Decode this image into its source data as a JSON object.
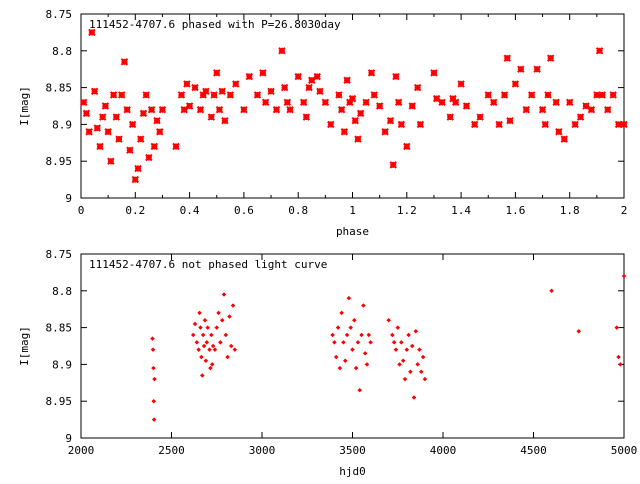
{
  "chart_data": [
    {
      "type": "scatter",
      "title": "111452-4707.6 phased with P=26.8030day",
      "xlabel": "phase",
      "ylabel": "I[mag]",
      "xlim": [
        0,
        2
      ],
      "ylim": [
        9,
        8.75
      ],
      "y_inverted": true,
      "grid": false,
      "marker": "bold-x",
      "color": "#ff0000",
      "xticks": [
        "0",
        "0.2",
        "0.4",
        "0.6",
        "0.8",
        "1",
        "1.2",
        "1.4",
        "1.6",
        "1.8",
        "2"
      ],
      "yticks": [
        "8.75",
        "8.8",
        "8.85",
        "8.9",
        "8.95",
        "9"
      ],
      "x": [
        0.01,
        0.02,
        0.03,
        0.04,
        0.05,
        0.06,
        0.07,
        0.08,
        0.09,
        0.1,
        0.11,
        0.12,
        0.13,
        0.14,
        0.15,
        0.16,
        0.17,
        0.18,
        0.19,
        0.2,
        0.21,
        0.22,
        0.23,
        0.24,
        0.25,
        0.26,
        0.27,
        0.28,
        0.29,
        0.3,
        0.35,
        0.37,
        0.38,
        0.39,
        0.4,
        0.42,
        0.44,
        0.45,
        0.46,
        0.48,
        0.49,
        0.5,
        0.51,
        0.52,
        0.53,
        0.55,
        0.57,
        0.6,
        0.62,
        0.65,
        0.67,
        0.68,
        0.7,
        0.72,
        0.74,
        0.75,
        0.76,
        0.77,
        0.8,
        0.82,
        0.83,
        0.84,
        0.85,
        0.87,
        0.88,
        0.9,
        0.92,
        0.95,
        0.96,
        0.97,
        0.98,
        0.99,
        1.0,
        1.01,
        1.02,
        1.03,
        1.05,
        1.07,
        1.08,
        1.1,
        1.12,
        1.14,
        1.15,
        1.16,
        1.17,
        1.18,
        1.2,
        1.22,
        1.24,
        1.25,
        1.3,
        1.31,
        1.33,
        1.36,
        1.37,
        1.38,
        1.4,
        1.42,
        1.45,
        1.47,
        1.5,
        1.52,
        1.54,
        1.56,
        1.57,
        1.58,
        1.6,
        1.62,
        1.64,
        1.66,
        1.68,
        1.7,
        1.71,
        1.72,
        1.73,
        1.75,
        1.76,
        1.78,
        1.8,
        1.82,
        1.84,
        1.86,
        1.88,
        1.9,
        1.91,
        1.92,
        1.94,
        1.96,
        1.98,
        2.0
      ],
      "y": [
        8.87,
        8.885,
        8.91,
        8.775,
        8.855,
        8.905,
        8.93,
        8.89,
        8.875,
        8.91,
        8.95,
        8.86,
        8.89,
        8.92,
        8.86,
        8.815,
        8.88,
        8.935,
        8.9,
        8.975,
        8.96,
        8.92,
        8.885,
        8.86,
        8.945,
        8.88,
        8.93,
        8.895,
        8.91,
        8.88,
        8.93,
        8.86,
        8.88,
        8.845,
        8.875,
        8.85,
        8.88,
        8.86,
        8.855,
        8.89,
        8.86,
        8.83,
        8.88,
        8.855,
        8.895,
        8.86,
        8.845,
        8.88,
        8.835,
        8.86,
        8.83,
        8.87,
        8.855,
        8.88,
        8.8,
        8.85,
        8.87,
        8.88,
        8.835,
        8.87,
        8.89,
        8.85,
        8.84,
        8.835,
        8.855,
        8.87,
        8.9,
        8.86,
        8.88,
        8.91,
        8.84,
        8.87,
        8.865,
        8.895,
        8.92,
        8.885,
        8.87,
        8.83,
        8.86,
        8.875,
        8.91,
        8.895,
        8.955,
        8.835,
        8.87,
        8.9,
        8.93,
        8.875,
        8.85,
        8.9,
        8.83,
        8.865,
        8.87,
        8.89,
        8.865,
        8.87,
        8.845,
        8.875,
        8.9,
        8.89,
        8.86,
        8.87,
        8.9,
        8.86,
        8.81,
        8.895,
        8.845,
        8.825,
        8.88,
        8.86,
        8.825,
        8.88,
        8.9,
        8.86,
        8.81,
        8.87,
        8.91,
        8.92,
        8.87,
        8.9,
        8.89,
        8.875,
        8.88,
        8.86,
        8.8,
        8.86,
        8.88,
        8.86,
        8.9,
        8.9
      ],
      "annotation": "111452-4707.6 phased with P=26.8030day"
    },
    {
      "type": "scatter",
      "title": "111452-4707.6 not phased light curve",
      "xlabel": "hjd0",
      "ylabel": "I[mag]",
      "xlim": [
        2000,
        5000
      ],
      "ylim": [
        9,
        8.75
      ],
      "y_inverted": true,
      "grid": false,
      "marker": "small-diamond",
      "color": "#ff0000",
      "xticks": [
        "2000",
        "2500",
        "3000",
        "3500",
        "4000",
        "4500",
        "5000"
      ],
      "yticks": [
        "8.75",
        "8.8",
        "8.85",
        "8.9",
        "8.95",
        "9"
      ],
      "x": [
        2395,
        2398,
        2400,
        2402,
        2404,
        2406,
        2620,
        2630,
        2640,
        2650,
        2655,
        2660,
        2665,
        2670,
        2675,
        2680,
        2685,
        2690,
        2695,
        2700,
        2710,
        2715,
        2720,
        2725,
        2730,
        2740,
        2750,
        2760,
        2770,
        2780,
        2790,
        2800,
        2810,
        2820,
        2830,
        2840,
        2850,
        3390,
        3400,
        3410,
        3420,
        3430,
        3440,
        3450,
        3460,
        3470,
        3480,
        3490,
        3500,
        3510,
        3520,
        3530,
        3540,
        3550,
        3560,
        3570,
        3580,
        3590,
        3600,
        3700,
        3720,
        3730,
        3740,
        3750,
        3760,
        3770,
        3780,
        3790,
        3800,
        3810,
        3820,
        3830,
        3840,
        3850,
        3860,
        3870,
        3880,
        3890,
        3900,
        4600,
        4750,
        4960,
        4970,
        4980,
        5000
      ],
      "y": [
        8.865,
        8.88,
        8.905,
        8.95,
        8.975,
        8.92,
        8.86,
        8.845,
        8.87,
        8.88,
        8.83,
        8.85,
        8.89,
        8.915,
        8.86,
        8.875,
        8.84,
        8.895,
        8.87,
        8.85,
        8.88,
        8.905,
        8.86,
        8.9,
        8.875,
        8.88,
        8.85,
        8.83,
        8.87,
        8.84,
        8.805,
        8.86,
        8.89,
        8.835,
        8.875,
        8.82,
        8.88,
        8.86,
        8.87,
        8.89,
        8.85,
        8.905,
        8.83,
        8.87,
        8.895,
        8.86,
        8.81,
        8.85,
        8.88,
        8.84,
        8.905,
        8.87,
        8.935,
        8.86,
        8.82,
        8.885,
        8.9,
        8.86,
        8.87,
        8.84,
        8.86,
        8.87,
        8.88,
        8.85,
        8.9,
        8.87,
        8.895,
        8.92,
        8.88,
        8.86,
        8.91,
        8.875,
        8.945,
        8.855,
        8.9,
        8.88,
        8.91,
        8.89,
        8.92,
        8.8,
        8.855,
        8.85,
        8.89,
        8.9,
        8.78
      ],
      "annotation": "111452-4707.6 not phased light curve"
    }
  ]
}
